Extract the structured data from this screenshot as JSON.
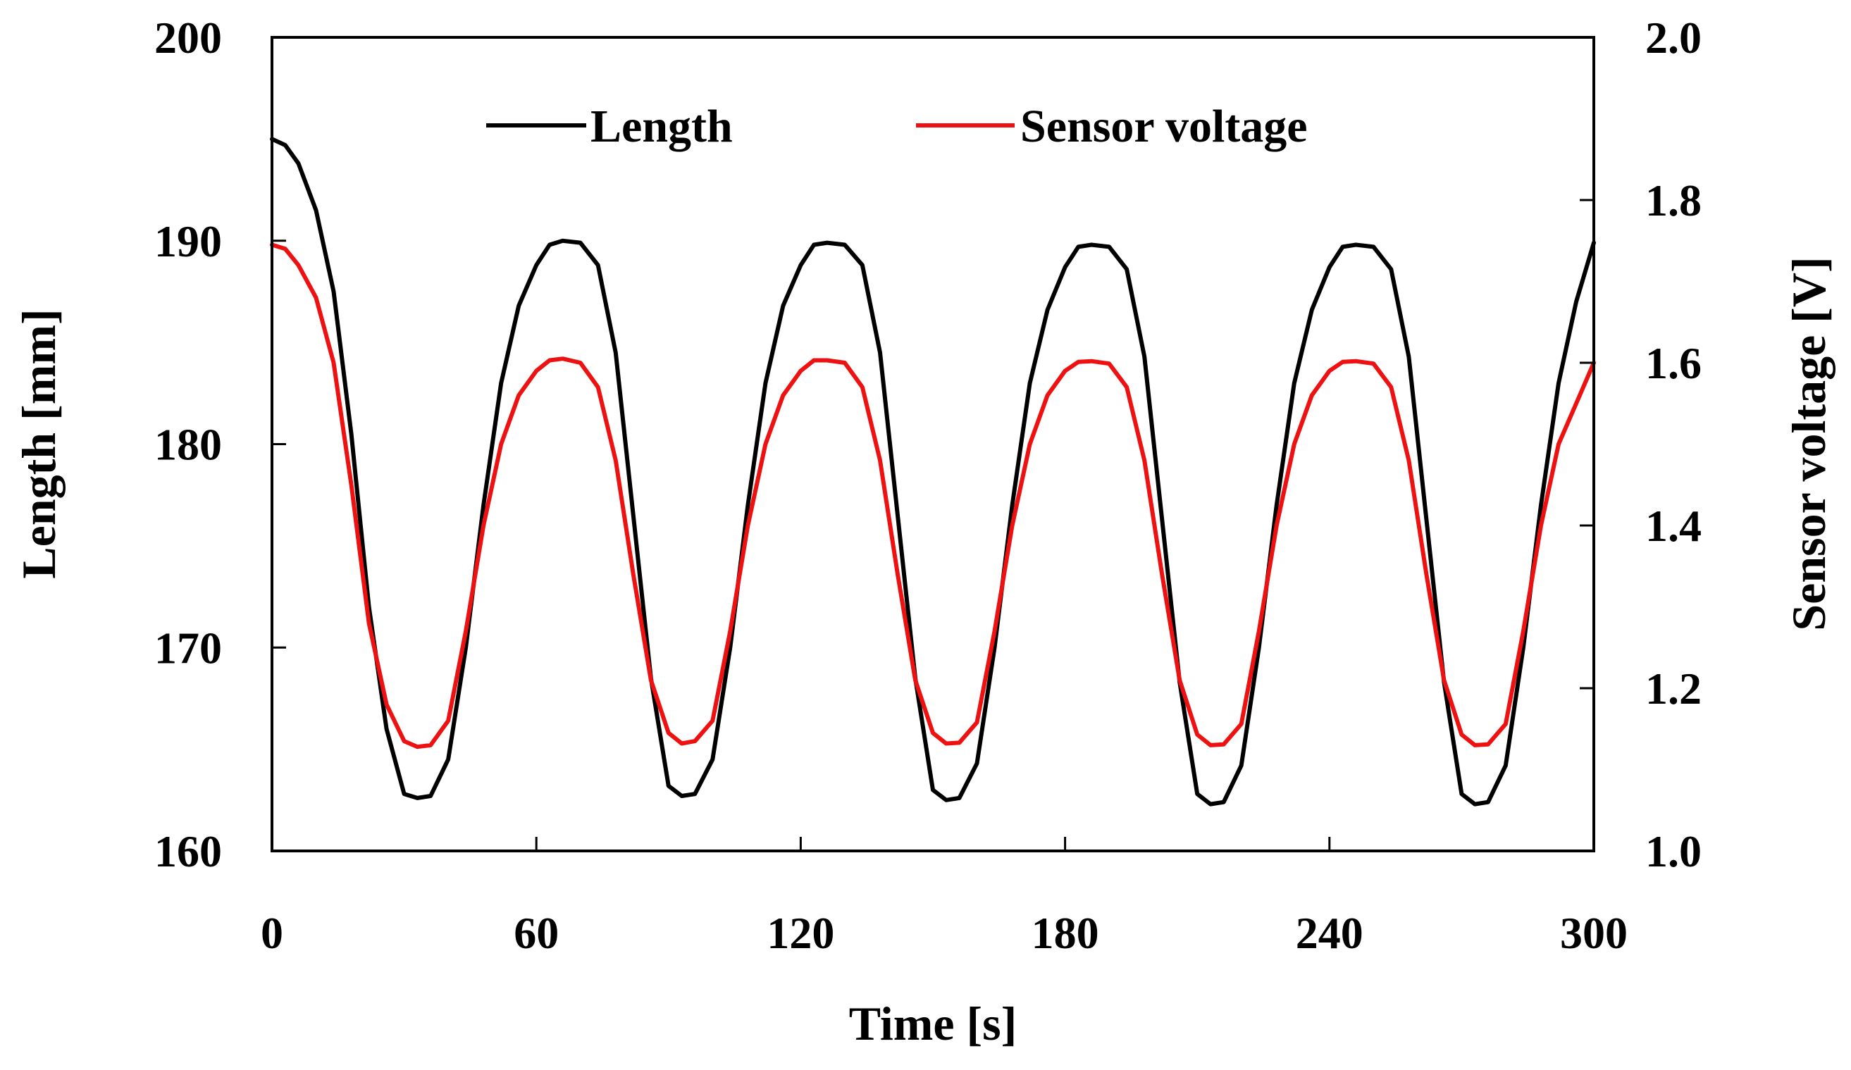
{
  "chart_data": {
    "type": "line",
    "title": "",
    "xlabel": "Time [s]",
    "ylabel_left": "Length [mm]",
    "ylabel_right": "Sensor voltage [V]",
    "xlim": [
      0,
      300
    ],
    "ylim_left": [
      160,
      200
    ],
    "ylim_right": [
      1.0,
      2.0
    ],
    "x_ticks": [
      0,
      60,
      120,
      180,
      240,
      300
    ],
    "x_tick_labels": [
      "0",
      "60",
      "120",
      "180",
      "240",
      "300"
    ],
    "y_left_ticks": [
      160,
      170,
      180,
      190,
      200
    ],
    "y_left_tick_labels": [
      "160",
      "170",
      "180",
      "190",
      "200"
    ],
    "y_right_ticks": [
      1.0,
      1.2,
      1.4,
      1.6,
      1.8,
      2.0
    ],
    "y_right_tick_labels": [
      "1.0",
      "1.2",
      "1.4",
      "1.6",
      "1.8",
      "2.0"
    ],
    "grid": false,
    "legend_position": "top-center",
    "series": [
      {
        "name": "Length",
        "axis": "left",
        "color": "#000000",
        "x": [
          0,
          3,
          6,
          10,
          14,
          18,
          22,
          26,
          30,
          33,
          36,
          40,
          44,
          48,
          52,
          56,
          60,
          63,
          66,
          70,
          74,
          78,
          82,
          86,
          90,
          93,
          96,
          100,
          104,
          108,
          112,
          116,
          120,
          123,
          126,
          130,
          134,
          138,
          142,
          146,
          150,
          153,
          156,
          160,
          164,
          168,
          172,
          176,
          180,
          183,
          186,
          190,
          194,
          198,
          202,
          206,
          210,
          213,
          216,
          220,
          224,
          228,
          232,
          236,
          240,
          243,
          246,
          250,
          254,
          258,
          262,
          266,
          270,
          273,
          276,
          280,
          284,
          288,
          292,
          296,
          300
        ],
        "values": [
          195.0,
          194.7,
          193.8,
          191.5,
          187.5,
          180.5,
          172.0,
          166.0,
          162.8,
          162.6,
          162.7,
          164.5,
          170.0,
          177.0,
          183.0,
          186.8,
          188.8,
          189.8,
          190.0,
          189.9,
          188.8,
          184.5,
          176.5,
          168.5,
          163.2,
          162.7,
          162.8,
          164.5,
          170.0,
          177.0,
          183.0,
          186.8,
          188.8,
          189.8,
          189.9,
          189.8,
          188.8,
          184.5,
          176.5,
          168.5,
          163.0,
          162.5,
          162.6,
          164.3,
          170.0,
          177.0,
          183.0,
          186.6,
          188.7,
          189.7,
          189.8,
          189.7,
          188.6,
          184.3,
          176.3,
          168.3,
          162.8,
          162.3,
          162.4,
          164.2,
          170.0,
          177.0,
          183.0,
          186.6,
          188.7,
          189.7,
          189.8,
          189.7,
          188.6,
          184.3,
          176.3,
          168.3,
          162.8,
          162.3,
          162.4,
          164.2,
          170.0,
          177.0,
          183.0,
          187.0,
          189.9
        ]
      },
      {
        "name": "Sensor voltage",
        "axis": "right",
        "color": "#ee1111",
        "x": [
          0,
          3,
          6,
          10,
          14,
          18,
          22,
          26,
          30,
          33,
          36,
          40,
          44,
          48,
          52,
          56,
          60,
          63,
          66,
          70,
          74,
          78,
          82,
          86,
          90,
          93,
          96,
          100,
          104,
          108,
          112,
          116,
          120,
          123,
          126,
          130,
          134,
          138,
          142,
          146,
          150,
          153,
          156,
          160,
          164,
          168,
          172,
          176,
          180,
          183,
          186,
          190,
          194,
          198,
          202,
          206,
          210,
          213,
          216,
          220,
          224,
          228,
          232,
          236,
          240,
          243,
          246,
          250,
          254,
          258,
          262,
          266,
          270,
          273,
          276,
          280,
          284,
          288,
          292,
          296,
          300
        ],
        "values": [
          1.745,
          1.74,
          1.72,
          1.68,
          1.6,
          1.45,
          1.28,
          1.18,
          1.135,
          1.128,
          1.13,
          1.16,
          1.27,
          1.4,
          1.5,
          1.56,
          1.59,
          1.603,
          1.605,
          1.6,
          1.57,
          1.48,
          1.34,
          1.21,
          1.145,
          1.132,
          1.135,
          1.16,
          1.27,
          1.4,
          1.5,
          1.56,
          1.59,
          1.603,
          1.603,
          1.6,
          1.57,
          1.48,
          1.34,
          1.21,
          1.145,
          1.132,
          1.133,
          1.158,
          1.27,
          1.4,
          1.5,
          1.56,
          1.59,
          1.601,
          1.602,
          1.599,
          1.57,
          1.48,
          1.34,
          1.21,
          1.143,
          1.13,
          1.131,
          1.156,
          1.27,
          1.4,
          1.5,
          1.56,
          1.59,
          1.601,
          1.602,
          1.599,
          1.57,
          1.48,
          1.34,
          1.21,
          1.143,
          1.13,
          1.131,
          1.156,
          1.27,
          1.4,
          1.5,
          1.55,
          1.6
        ]
      }
    ]
  }
}
